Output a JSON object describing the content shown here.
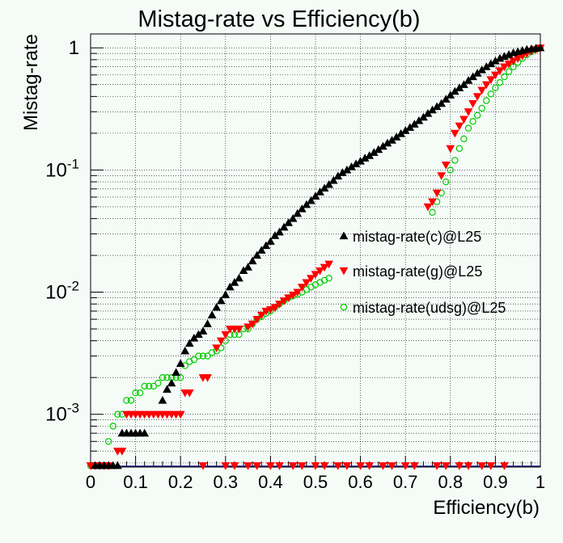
{
  "chart_data": {
    "type": "scatter",
    "title": "Mistag-rate vs Efficiency(b)",
    "xlabel": "Efficiency(b)",
    "ylabel": "Mistag-rate",
    "xlim": [
      0,
      1
    ],
    "ylim": [
      0.00037,
      1.3
    ],
    "ylog": true,
    "grid": true,
    "legend_position": "center-right",
    "xticks": [
      "0",
      "0.1",
      "0.2",
      "0.3",
      "0.4",
      "0.5",
      "0.6",
      "0.7",
      "0.8",
      "0.9",
      "1"
    ],
    "yticks": [
      {
        "base": "1",
        "exp": "",
        "value": 1
      },
      {
        "base": "10",
        "exp": "-1",
        "value": 0.1
      },
      {
        "base": "10",
        "exp": "-2",
        "value": 0.01
      },
      {
        "base": "10",
        "exp": "-3",
        "value": 0.001
      }
    ],
    "series": [
      {
        "name": "mistag-rate(c)@L25",
        "marker": "triangle-up",
        "color": "#000000",
        "fill": "#000000",
        "points": [
          [
            0.01,
            0.00038
          ],
          [
            0.02,
            0.00038
          ],
          [
            0.03,
            0.00038
          ],
          [
            0.04,
            0.00038
          ],
          [
            0.05,
            0.00038
          ],
          [
            0.06,
            0.00038
          ],
          [
            0.07,
            0.0007
          ],
          [
            0.08,
            0.0007
          ],
          [
            0.09,
            0.0007
          ],
          [
            0.1,
            0.0007
          ],
          [
            0.11,
            0.0007
          ],
          [
            0.12,
            0.0007
          ],
          [
            0.16,
            0.0013
          ],
          [
            0.17,
            0.0016
          ],
          [
            0.18,
            0.0018
          ],
          [
            0.19,
            0.0022
          ],
          [
            0.2,
            0.0026
          ],
          [
            0.21,
            0.0033
          ],
          [
            0.22,
            0.0038
          ],
          [
            0.23,
            0.0042
          ],
          [
            0.24,
            0.0045
          ],
          [
            0.25,
            0.0048
          ],
          [
            0.26,
            0.0055
          ],
          [
            0.27,
            0.0065
          ],
          [
            0.28,
            0.0075
          ],
          [
            0.29,
            0.0085
          ],
          [
            0.3,
            0.0095
          ],
          [
            0.31,
            0.011
          ],
          [
            0.32,
            0.012
          ],
          [
            0.33,
            0.013
          ],
          [
            0.34,
            0.015
          ],
          [
            0.35,
            0.016
          ],
          [
            0.36,
            0.018
          ],
          [
            0.37,
            0.02
          ],
          [
            0.38,
            0.022
          ],
          [
            0.39,
            0.024
          ],
          [
            0.4,
            0.026
          ],
          [
            0.41,
            0.029
          ],
          [
            0.42,
            0.031
          ],
          [
            0.43,
            0.034
          ],
          [
            0.44,
            0.037
          ],
          [
            0.45,
            0.04
          ],
          [
            0.46,
            0.044
          ],
          [
            0.47,
            0.048
          ],
          [
            0.48,
            0.052
          ],
          [
            0.49,
            0.056
          ],
          [
            0.5,
            0.061
          ],
          [
            0.51,
            0.066
          ],
          [
            0.52,
            0.071
          ],
          [
            0.53,
            0.076
          ],
          [
            0.54,
            0.082
          ],
          [
            0.55,
            0.089
          ],
          [
            0.56,
            0.095
          ],
          [
            0.57,
            0.1
          ],
          [
            0.58,
            0.106
          ],
          [
            0.59,
            0.112
          ],
          [
            0.6,
            0.118
          ],
          [
            0.61,
            0.125
          ],
          [
            0.62,
            0.131
          ],
          [
            0.63,
            0.139
          ],
          [
            0.64,
            0.147
          ],
          [
            0.65,
            0.156
          ],
          [
            0.66,
            0.166
          ],
          [
            0.67,
            0.175
          ],
          [
            0.68,
            0.186
          ],
          [
            0.69,
            0.198
          ],
          [
            0.7,
            0.21
          ],
          [
            0.71,
            0.223
          ],
          [
            0.72,
            0.237
          ],
          [
            0.73,
            0.253
          ],
          [
            0.74,
            0.27
          ],
          [
            0.75,
            0.29
          ],
          [
            0.76,
            0.31
          ],
          [
            0.77,
            0.33
          ],
          [
            0.78,
            0.35
          ],
          [
            0.79,
            0.38
          ],
          [
            0.8,
            0.41
          ],
          [
            0.81,
            0.44
          ],
          [
            0.82,
            0.47
          ],
          [
            0.83,
            0.5
          ],
          [
            0.84,
            0.54
          ],
          [
            0.85,
            0.58
          ],
          [
            0.86,
            0.62
          ],
          [
            0.87,
            0.66
          ],
          [
            0.88,
            0.7
          ],
          [
            0.89,
            0.74
          ],
          [
            0.9,
            0.78
          ],
          [
            0.91,
            0.82
          ],
          [
            0.92,
            0.85
          ],
          [
            0.93,
            0.88
          ],
          [
            0.94,
            0.91
          ],
          [
            0.95,
            0.93
          ],
          [
            0.96,
            0.95
          ],
          [
            0.97,
            0.97
          ],
          [
            0.98,
            0.98
          ],
          [
            0.99,
            0.99
          ],
          [
            1.0,
            1.0
          ]
        ]
      },
      {
        "name": "mistag-rate(g)@L25",
        "marker": "triangle-down",
        "color": "#ff0000",
        "fill": "#ff0000",
        "points": [
          [
            0.0,
            0.00038
          ],
          [
            0.01,
            0.00038
          ],
          [
            0.02,
            0.00038
          ],
          [
            0.03,
            0.00038
          ],
          [
            0.04,
            0.00038
          ],
          [
            0.06,
            0.0005
          ],
          [
            0.07,
            0.0005
          ],
          [
            0.08,
            0.001
          ],
          [
            0.09,
            0.001
          ],
          [
            0.1,
            0.001
          ],
          [
            0.11,
            0.001
          ],
          [
            0.12,
            0.001
          ],
          [
            0.13,
            0.001
          ],
          [
            0.14,
            0.001
          ],
          [
            0.15,
            0.001
          ],
          [
            0.16,
            0.001
          ],
          [
            0.17,
            0.001
          ],
          [
            0.18,
            0.001
          ],
          [
            0.19,
            0.001
          ],
          [
            0.2,
            0.001
          ],
          [
            0.21,
            0.0015
          ],
          [
            0.22,
            0.0015
          ],
          [
            0.25,
            0.002
          ],
          [
            0.26,
            0.002
          ],
          [
            0.28,
            0.0035
          ],
          [
            0.29,
            0.004
          ],
          [
            0.3,
            0.0045
          ],
          [
            0.31,
            0.005
          ],
          [
            0.32,
            0.005
          ],
          [
            0.33,
            0.005
          ],
          [
            0.35,
            0.0052
          ],
          [
            0.36,
            0.0055
          ],
          [
            0.37,
            0.006
          ],
          [
            0.38,
            0.0065
          ],
          [
            0.39,
            0.007
          ],
          [
            0.4,
            0.0072
          ],
          [
            0.41,
            0.0075
          ],
          [
            0.42,
            0.008
          ],
          [
            0.43,
            0.0085
          ],
          [
            0.44,
            0.009
          ],
          [
            0.45,
            0.0095
          ],
          [
            0.46,
            0.01
          ],
          [
            0.47,
            0.011
          ],
          [
            0.48,
            0.012
          ],
          [
            0.49,
            0.013
          ],
          [
            0.5,
            0.014
          ],
          [
            0.51,
            0.015
          ],
          [
            0.52,
            0.016
          ],
          [
            0.53,
            0.017
          ],
          [
            0.75,
            0.05
          ],
          [
            0.76,
            0.055
          ],
          [
            0.77,
            0.065
          ],
          [
            0.78,
            0.09
          ],
          [
            0.79,
            0.11
          ],
          [
            0.8,
            0.15
          ],
          [
            0.81,
            0.2
          ],
          [
            0.82,
            0.23
          ],
          [
            0.83,
            0.26
          ],
          [
            0.84,
            0.3
          ],
          [
            0.85,
            0.35
          ],
          [
            0.86,
            0.4
          ],
          [
            0.87,
            0.45
          ],
          [
            0.88,
            0.5
          ],
          [
            0.89,
            0.55
          ],
          [
            0.9,
            0.6
          ],
          [
            0.91,
            0.65
          ],
          [
            0.92,
            0.7
          ],
          [
            0.93,
            0.74
          ],
          [
            0.94,
            0.78
          ],
          [
            0.95,
            0.82
          ],
          [
            0.96,
            0.86
          ],
          [
            0.97,
            0.9
          ],
          [
            0.98,
            0.94
          ],
          [
            0.99,
            0.97
          ],
          [
            1.0,
            1.0
          ],
          [
            0.25,
            0.00038
          ],
          [
            0.3,
            0.00038
          ],
          [
            0.32,
            0.00038
          ],
          [
            0.35,
            0.00038
          ],
          [
            0.37,
            0.00038
          ],
          [
            0.4,
            0.00038
          ],
          [
            0.42,
            0.00038
          ],
          [
            0.45,
            0.00038
          ],
          [
            0.47,
            0.00038
          ],
          [
            0.5,
            0.00038
          ],
          [
            0.52,
            0.00038
          ],
          [
            0.55,
            0.00038
          ],
          [
            0.57,
            0.00038
          ],
          [
            0.6,
            0.00038
          ],
          [
            0.62,
            0.00038
          ],
          [
            0.65,
            0.00038
          ],
          [
            0.67,
            0.00038
          ],
          [
            0.7,
            0.00038
          ],
          [
            0.72,
            0.00038
          ],
          [
            0.77,
            0.00038
          ],
          [
            0.79,
            0.00038
          ],
          [
            0.82,
            0.00038
          ],
          [
            0.84,
            0.00038
          ],
          [
            0.87,
            0.00038
          ],
          [
            0.89,
            0.00038
          ],
          [
            0.92,
            0.00038
          ]
        ]
      },
      {
        "name": "mistag-rate(udsg)@L25",
        "marker": "circle-open",
        "color": "#00cc00",
        "fill": "none",
        "points": [
          [
            0.0,
            0.00038
          ],
          [
            0.01,
            0.00038
          ],
          [
            0.02,
            0.00038
          ],
          [
            0.03,
            0.00038
          ],
          [
            0.04,
            0.0006
          ],
          [
            0.05,
            0.0008
          ],
          [
            0.06,
            0.001
          ],
          [
            0.07,
            0.001
          ],
          [
            0.08,
            0.0013
          ],
          [
            0.09,
            0.0013
          ],
          [
            0.1,
            0.0015
          ],
          [
            0.11,
            0.0015
          ],
          [
            0.12,
            0.0017
          ],
          [
            0.13,
            0.0017
          ],
          [
            0.14,
            0.0017
          ],
          [
            0.15,
            0.0018
          ],
          [
            0.16,
            0.002
          ],
          [
            0.17,
            0.002
          ],
          [
            0.18,
            0.002
          ],
          [
            0.19,
            0.002
          ],
          [
            0.2,
            0.002
          ],
          [
            0.21,
            0.0025
          ],
          [
            0.22,
            0.0027
          ],
          [
            0.23,
            0.0028
          ],
          [
            0.24,
            0.003
          ],
          [
            0.25,
            0.003
          ],
          [
            0.26,
            0.003
          ],
          [
            0.27,
            0.0032
          ],
          [
            0.28,
            0.0033
          ],
          [
            0.29,
            0.0035
          ],
          [
            0.3,
            0.004
          ],
          [
            0.31,
            0.0045
          ],
          [
            0.32,
            0.0045
          ],
          [
            0.33,
            0.0045
          ],
          [
            0.34,
            0.005
          ],
          [
            0.35,
            0.005
          ],
          [
            0.36,
            0.0055
          ],
          [
            0.37,
            0.006
          ],
          [
            0.38,
            0.0063
          ],
          [
            0.39,
            0.0067
          ],
          [
            0.4,
            0.007
          ],
          [
            0.41,
            0.0075
          ],
          [
            0.42,
            0.008
          ],
          [
            0.43,
            0.0085
          ],
          [
            0.44,
            0.009
          ],
          [
            0.45,
            0.0093
          ],
          [
            0.46,
            0.0096
          ],
          [
            0.47,
            0.01
          ],
          [
            0.48,
            0.0105
          ],
          [
            0.49,
            0.011
          ],
          [
            0.5,
            0.0115
          ],
          [
            0.51,
            0.012
          ],
          [
            0.52,
            0.0125
          ],
          [
            0.53,
            0.013
          ],
          [
            0.76,
            0.045
          ],
          [
            0.77,
            0.055
          ],
          [
            0.78,
            0.065
          ],
          [
            0.79,
            0.08
          ],
          [
            0.8,
            0.1
          ],
          [
            0.81,
            0.12
          ],
          [
            0.82,
            0.15
          ],
          [
            0.83,
            0.18
          ],
          [
            0.84,
            0.22
          ],
          [
            0.85,
            0.25
          ],
          [
            0.86,
            0.28
          ],
          [
            0.87,
            0.32
          ],
          [
            0.88,
            0.37
          ],
          [
            0.89,
            0.42
          ],
          [
            0.9,
            0.47
          ],
          [
            0.91,
            0.52
          ],
          [
            0.92,
            0.58
          ],
          [
            0.93,
            0.64
          ],
          [
            0.94,
            0.7
          ],
          [
            0.95,
            0.76
          ],
          [
            0.96,
            0.82
          ],
          [
            0.97,
            0.88
          ],
          [
            0.98,
            0.93
          ],
          [
            0.99,
            0.97
          ],
          [
            1.0,
            1.0
          ]
        ]
      }
    ]
  }
}
